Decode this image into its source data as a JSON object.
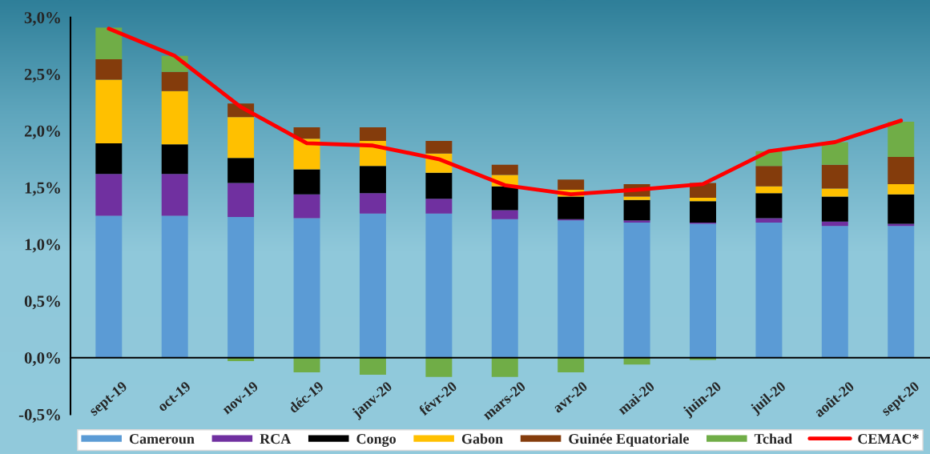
{
  "chart_data": {
    "type": "bar",
    "stacked": true,
    "categories": [
      "sept-19",
      "oct-19",
      "nov-19",
      "déc-19",
      "janv-20",
      "févr-20",
      "mars-20",
      "avr-20",
      "mai-20",
      "juin-20",
      "juil-20",
      "août-20",
      "sept-20"
    ],
    "series": [
      {
        "name": "Cameroun",
        "color": "#5b9bd5",
        "values": [
          1.25,
          1.25,
          1.24,
          1.23,
          1.27,
          1.27,
          1.22,
          1.21,
          1.19,
          1.18,
          1.19,
          1.16,
          1.16
        ]
      },
      {
        "name": "RCA",
        "color": "#7030a0",
        "values": [
          0.37,
          0.37,
          0.3,
          0.21,
          0.18,
          0.13,
          0.08,
          0.01,
          0.02,
          0.01,
          0.04,
          0.04,
          0.02
        ]
      },
      {
        "name": "Congo",
        "color": "#000000",
        "values": [
          0.27,
          0.26,
          0.22,
          0.22,
          0.24,
          0.23,
          0.21,
          0.2,
          0.18,
          0.19,
          0.22,
          0.22,
          0.26
        ]
      },
      {
        "name": "Gabon",
        "color": "#ffc000",
        "values": [
          0.56,
          0.47,
          0.36,
          0.27,
          0.22,
          0.17,
          0.1,
          0.06,
          0.03,
          0.03,
          0.06,
          0.07,
          0.09
        ]
      },
      {
        "name": "Guinée Equatoriale",
        "color": "#843c0c",
        "values": [
          0.18,
          0.17,
          0.12,
          0.1,
          0.12,
          0.11,
          0.09,
          0.09,
          0.11,
          0.13,
          0.18,
          0.21,
          0.24
        ]
      },
      {
        "name": "Tchad",
        "color": "#70ad47",
        "values": [
          0.28,
          0.14,
          -0.03,
          -0.13,
          -0.15,
          -0.17,
          -0.17,
          -0.13,
          -0.06,
          -0.02,
          0.13,
          0.2,
          0.31
        ]
      },
      {
        "name": "CEMAC*",
        "type": "line",
        "color": "#ff0000",
        "values": [
          2.9,
          2.66,
          2.21,
          1.89,
          1.87,
          1.75,
          1.52,
          1.44,
          1.48,
          1.53,
          1.82,
          1.9,
          2.09
        ]
      }
    ],
    "ylim": [
      -0.5,
      3.0
    ],
    "yticks": [
      {
        "value": -0.5,
        "label": "-0,5%"
      },
      {
        "value": 0,
        "label": "0,0%"
      },
      {
        "value": 0.5,
        "label": "0,5%"
      },
      {
        "value": 1.0,
        "label": "1,0%"
      },
      {
        "value": 1.5,
        "label": "1,5%"
      },
      {
        "value": 2.0,
        "label": "2,0%"
      },
      {
        "value": 2.5,
        "label": "2,5%"
      },
      {
        "value": 3.0,
        "label": "3,0%"
      }
    ],
    "legend": "bottom"
  }
}
